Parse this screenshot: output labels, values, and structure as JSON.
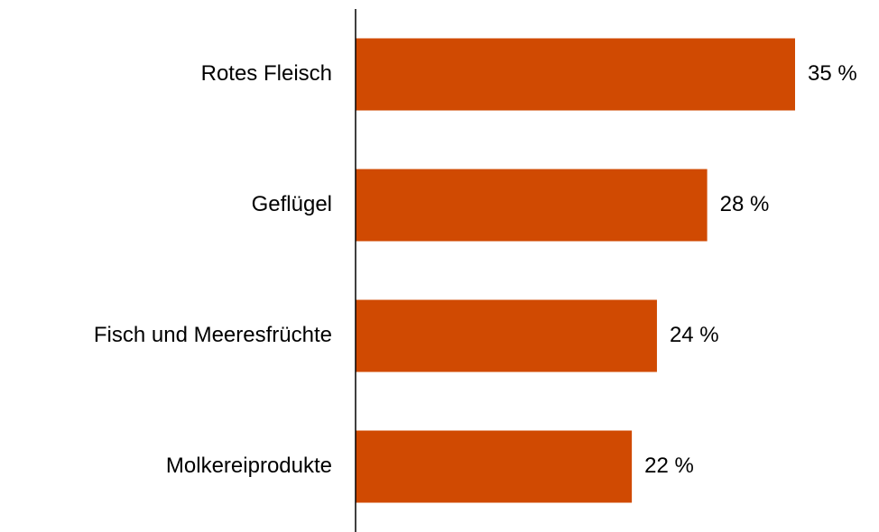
{
  "chart_data": {
    "type": "barh",
    "categories": [
      "Rotes Fleisch",
      "Geflügel",
      "Fisch und Meeresfrüchte",
      "Molkereiprodukte"
    ],
    "values": [
      35,
      28,
      24,
      22
    ],
    "value_labels": [
      "35 %",
      "28 %",
      "24 %",
      "22 %"
    ],
    "color": "#d04a02"
  }
}
